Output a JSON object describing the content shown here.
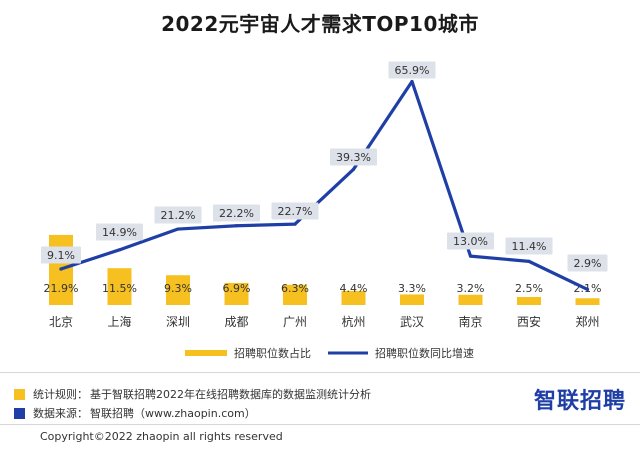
{
  "chart_data": {
    "type": "bar",
    "title": "2022元宇宙人才需求TOP10城市",
    "categories": [
      "北京",
      "上海",
      "深圳",
      "成都",
      "广州",
      "杭州",
      "武汉",
      "南京",
      "西安",
      "郑州"
    ],
    "series": [
      {
        "name": "招聘职位数占比",
        "type": "bar",
        "color": "#f5c020",
        "values": [
          21.9,
          11.5,
          9.3,
          6.9,
          6.3,
          4.4,
          3.3,
          3.2,
          2.5,
          2.1
        ],
        "labels": [
          "21.9%",
          "11.5%",
          "9.3%",
          "6.9%",
          "6.3%",
          "4.4%",
          "3.3%",
          "3.2%",
          "2.5%",
          "2.1%"
        ]
      },
      {
        "name": "招聘职位数同比增速",
        "type": "line",
        "color": "#1f3fa6",
        "values": [
          9.1,
          14.9,
          21.2,
          22.2,
          22.7,
          39.3,
          65.9,
          13.0,
          11.4,
          2.9
        ],
        "labels": [
          "9.1%",
          "14.9%",
          "21.2%",
          "22.2%",
          "22.7%",
          "39.3%",
          "65.9%",
          "13.0%",
          "11.4%",
          "2.9%"
        ]
      }
    ],
    "legend": "bottom-center"
  },
  "notes": [
    {
      "label": "统计规则：",
      "text": "基于智联招聘2022年在线招聘数据库的数据监测统计分析",
      "color": "#f5c020"
    },
    {
      "label": "数据来源：",
      "text": "智联招聘（www.zhaopin.com）",
      "color": "#1f3fa6"
    }
  ],
  "brand": "智联招聘",
  "copyright": "Copyright©2022 zhaopin all rights reserved"
}
